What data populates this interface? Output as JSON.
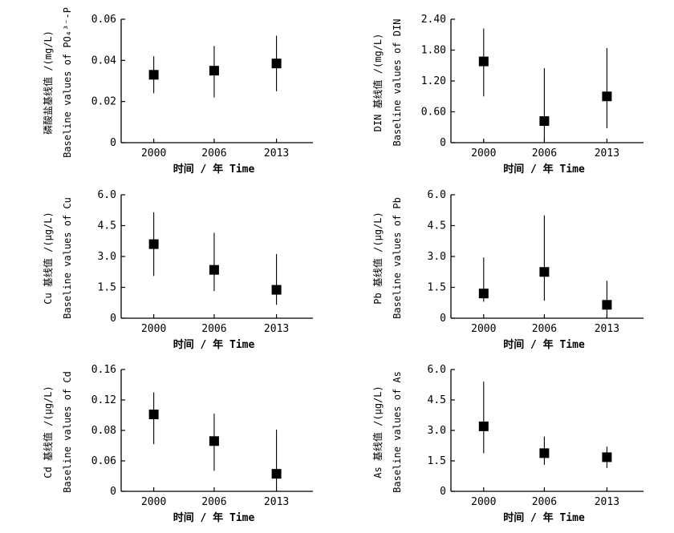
{
  "chart_data": [
    {
      "type": "scatter",
      "panel": "a",
      "categories": [
        "2000",
        "2006",
        "2013"
      ],
      "values": [
        0.033,
        0.035,
        0.0385
      ],
      "err_low": [
        0.024,
        0.022,
        0.025
      ],
      "err_high": [
        0.042,
        0.047,
        0.052
      ],
      "ylim": [
        0,
        0.06
      ],
      "yticks": [
        "0",
        "0.02",
        "0.04",
        "0.06"
      ],
      "xlabel": "时间 / 年 Time",
      "ylabel_cn": "磷酸盐基线值 /(mg/L)",
      "ylabel_en": "Baseline values of PO₄³⁻-P"
    },
    {
      "type": "scatter",
      "panel": "b",
      "categories": [
        "2000",
        "2006",
        "2013"
      ],
      "values": [
        1.58,
        0.42,
        0.9
      ],
      "err_low": [
        0.9,
        0.05,
        0.28
      ],
      "err_high": [
        2.22,
        1.45,
        1.84
      ],
      "ylim": [
        0,
        2.4
      ],
      "yticks": [
        "0",
        "0.60",
        "1.20",
        "1.80",
        "2.40"
      ],
      "xlabel": "时间 / 年 Time",
      "ylabel_cn": "DIN 基线值 /(mg/L)",
      "ylabel_en": "Baseline values of DIN"
    },
    {
      "type": "scatter",
      "panel": "c",
      "categories": [
        "2000",
        "2006",
        "2013"
      ],
      "values": [
        3.6,
        2.35,
        1.38
      ],
      "err_low": [
        2.05,
        1.32,
        0.65
      ],
      "err_high": [
        5.15,
        4.15,
        3.12
      ],
      "ylim": [
        0,
        6.0
      ],
      "yticks": [
        "0",
        "1.5",
        "3.0",
        "4.5",
        "6.0"
      ],
      "xlabel": "时间 / 年 Time",
      "ylabel_cn": "Cu 基线值 /(μg/L)",
      "ylabel_en": "Baseline values of Cu"
    },
    {
      "type": "scatter",
      "panel": "d",
      "categories": [
        "2000",
        "2006",
        "2013"
      ],
      "values": [
        1.2,
        2.25,
        0.65
      ],
      "err_low": [
        0.8,
        0.85,
        0.0
      ],
      "err_high": [
        2.95,
        5.0,
        1.82
      ],
      "ylim": [
        0,
        6.0
      ],
      "yticks": [
        "0",
        "1.5",
        "3.0",
        "4.5",
        "6.0"
      ],
      "xlabel": "时间 / 年 Time",
      "ylabel_cn": "Pb 基线值 /(μg/L)",
      "ylabel_en": "Baseline values of Pb"
    },
    {
      "type": "scatter",
      "panel": "e",
      "categories": [
        "2000",
        "2006",
        "2013"
      ],
      "values": [
        0.101,
        0.066,
        0.023
      ],
      "err_low": [
        0.062,
        0.027,
        0.005
      ],
      "err_high": [
        0.13,
        0.102,
        0.081
      ],
      "ylim": [
        0,
        0.16
      ],
      "yticks": [
        "0",
        "0.06",
        "0.08",
        "0.12",
        "0.16"
      ],
      "xlabel": "时间 / 年 Time",
      "ylabel_cn": "Cd 基线值 /(μg/L)",
      "ylabel_en": "Baseline values of Cd"
    },
    {
      "type": "scatter",
      "panel": "f",
      "categories": [
        "2000",
        "2006",
        "2013"
      ],
      "values": [
        3.2,
        1.88,
        1.68
      ],
      "err_low": [
        1.88,
        1.3,
        1.15
      ],
      "err_high": [
        5.4,
        2.7,
        2.2
      ],
      "ylim": [
        0,
        6.0
      ],
      "yticks": [
        "0",
        "1.5",
        "3.0",
        "4.5",
        "6.0"
      ],
      "xlabel": "时间 / 年 Time",
      "ylabel_cn": "As 基线值 /(μg/L)",
      "ylabel_en": "Baseline values of As"
    }
  ]
}
